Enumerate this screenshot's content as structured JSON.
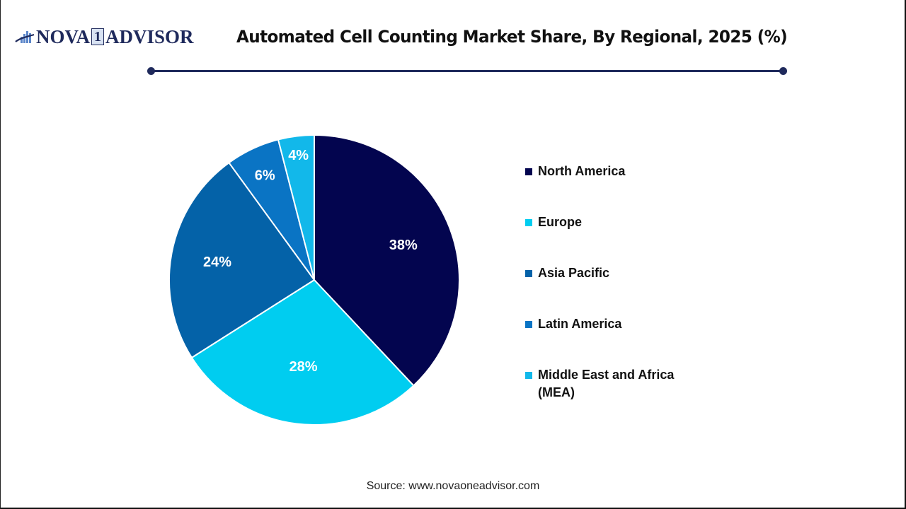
{
  "brand": {
    "logo_left": "NOVA",
    "logo_one": "1",
    "logo_right": "ADVISOR",
    "color": "#1f2a5c"
  },
  "header": {
    "title": "Automated Cell Counting Market Share, By Regional, 2025 (%)"
  },
  "legend": {
    "items": [
      {
        "label": "North America",
        "color": "#03054f"
      },
      {
        "label": "Europe",
        "color": "#00cdf0"
      },
      {
        "label": "Asia Pacific",
        "color": "#0462a8"
      },
      {
        "label": "Latin America",
        "color": "#0a74c4"
      },
      {
        "label": "Middle East and Africa (MEA)",
        "color": "#12b8ea"
      }
    ]
  },
  "footer": {
    "source": "Source: www.novaoneadvisor.com"
  },
  "chart_data": {
    "type": "pie",
    "title": "Automated Cell Counting Market Share, By Regional, 2025 (%)",
    "categories": [
      "North America",
      "Europe",
      "Asia Pacific",
      "Latin America",
      "Middle East and Africa (MEA)"
    ],
    "values": [
      38,
      28,
      24,
      6,
      4
    ],
    "labels": [
      "38%",
      "28%",
      "24%",
      "6%",
      "4%"
    ],
    "colors": [
      "#03054f",
      "#00cdf0",
      "#0462a8",
      "#0a74c4",
      "#12b8ea"
    ],
    "start_angle": "12 o'clock, clockwise",
    "legend_position": "right"
  }
}
